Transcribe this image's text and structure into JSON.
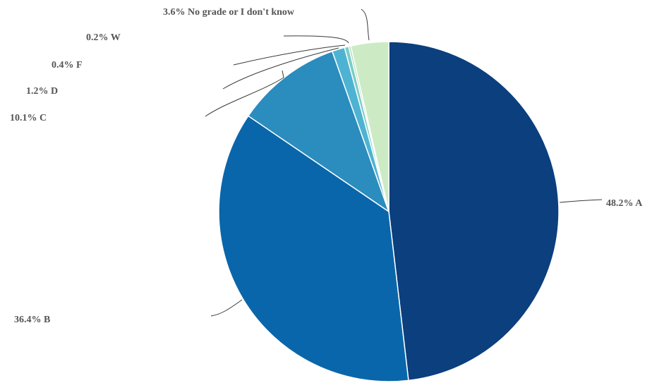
{
  "chart_data": {
    "type": "pie",
    "title": "",
    "start_angle_deg": 0,
    "direction": "clockwise",
    "legend": "none",
    "slices": [
      {
        "label": "A",
        "value": 48.2,
        "text": "48.2% A",
        "color": "#0b3f7e"
      },
      {
        "label": "B",
        "value": 36.4,
        "text": "36.4% B",
        "color": "#0a66aa"
      },
      {
        "label": "C",
        "value": 10.1,
        "text": "10.1% C",
        "color": "#2b8cbe"
      },
      {
        "label": "D",
        "value": 1.2,
        "text": "1.2% D",
        "color": "#4eb3d3"
      },
      {
        "label": "F",
        "value": 0.4,
        "text": "0.4% F",
        "color": "#7bccc4"
      },
      {
        "label": "W",
        "value": 0.2,
        "text": "0.2% W",
        "color": "#a8ddb5"
      },
      {
        "label": "No grade or I don't know",
        "value": 3.6,
        "text": "3.6% No grade or I don't know",
        "color": "#ccebc5"
      }
    ]
  }
}
